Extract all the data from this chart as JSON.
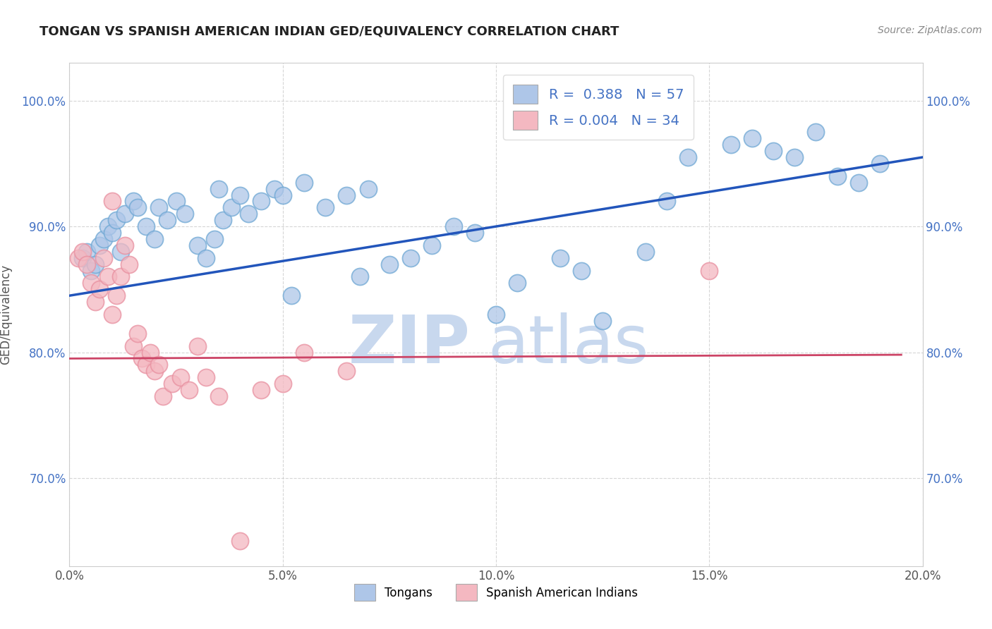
{
  "title": "TONGAN VS SPANISH AMERICAN INDIAN GED/EQUIVALENCY CORRELATION CHART",
  "source_text": "Source: ZipAtlas.com",
  "ylabel": "GED/Equivalency",
  "xlim": [
    0.0,
    20.0
  ],
  "ylim": [
    63.0,
    103.0
  ],
  "xtick_labels": [
    "0.0%",
    "5.0%",
    "10.0%",
    "15.0%",
    "20.0%"
  ],
  "xtick_values": [
    0.0,
    5.0,
    10.0,
    15.0,
    20.0
  ],
  "ytick_labels": [
    "70.0%",
    "80.0%",
    "90.0%",
    "100.0%"
  ],
  "ytick_values": [
    70.0,
    80.0,
    90.0,
    100.0
  ],
  "legend_entries": [
    {
      "label": "Tongans",
      "color": "#aec6e8",
      "R": "0.388",
      "N": "57"
    },
    {
      "label": "Spanish American Indians",
      "color": "#f4b8c1",
      "R": "0.004",
      "N": "34"
    }
  ],
  "blue_scatter_x": [
    0.3,
    0.4,
    0.5,
    0.6,
    0.7,
    0.8,
    0.9,
    1.0,
    1.1,
    1.2,
    1.3,
    1.5,
    1.6,
    1.8,
    2.0,
    2.1,
    2.3,
    2.5,
    2.7,
    3.0,
    3.2,
    3.4,
    3.6,
    3.8,
    4.0,
    4.2,
    4.5,
    4.8,
    5.0,
    5.5,
    6.0,
    6.5,
    7.0,
    7.5,
    8.5,
    9.0,
    9.5,
    10.5,
    11.5,
    12.0,
    13.5,
    14.0,
    15.5,
    16.0,
    16.5,
    17.0,
    17.5,
    18.0,
    18.5,
    3.5,
    5.2,
    6.8,
    8.0,
    10.0,
    12.5,
    14.5,
    19.0
  ],
  "blue_scatter_y": [
    87.5,
    88.0,
    86.5,
    87.0,
    88.5,
    89.0,
    90.0,
    89.5,
    90.5,
    88.0,
    91.0,
    92.0,
    91.5,
    90.0,
    89.0,
    91.5,
    90.5,
    92.0,
    91.0,
    88.5,
    87.5,
    89.0,
    90.5,
    91.5,
    92.5,
    91.0,
    92.0,
    93.0,
    92.5,
    93.5,
    91.5,
    92.5,
    93.0,
    87.0,
    88.5,
    90.0,
    89.5,
    85.5,
    87.5,
    86.5,
    88.0,
    92.0,
    96.5,
    97.0,
    96.0,
    95.5,
    97.5,
    94.0,
    93.5,
    93.0,
    84.5,
    86.0,
    87.5,
    83.0,
    82.5,
    95.5,
    95.0
  ],
  "pink_scatter_x": [
    0.2,
    0.3,
    0.4,
    0.5,
    0.6,
    0.7,
    0.8,
    0.9,
    1.0,
    1.1,
    1.2,
    1.3,
    1.4,
    1.5,
    1.6,
    1.7,
    1.8,
    1.9,
    2.0,
    2.1,
    2.2,
    2.4,
    2.6,
    2.8,
    3.0,
    3.2,
    3.5,
    4.0,
    4.5,
    5.0,
    5.5,
    6.5,
    1.0,
    15.0
  ],
  "pink_scatter_y": [
    87.5,
    88.0,
    87.0,
    85.5,
    84.0,
    85.0,
    87.5,
    86.0,
    83.0,
    84.5,
    86.0,
    88.5,
    87.0,
    80.5,
    81.5,
    79.5,
    79.0,
    80.0,
    78.5,
    79.0,
    76.5,
    77.5,
    78.0,
    77.0,
    80.5,
    78.0,
    76.5,
    65.0,
    77.0,
    77.5,
    80.0,
    78.5,
    92.0,
    86.5
  ],
  "blue_line_x": [
    0.0,
    20.0
  ],
  "blue_line_y": [
    84.5,
    95.5
  ],
  "pink_line_x": [
    0.0,
    19.5
  ],
  "pink_line_y": [
    79.5,
    79.8
  ],
  "watermark_zip": "ZIP",
  "watermark_atlas": "atlas",
  "watermark_color": "#c8d8ee",
  "blue_line_color": "#2255bb",
  "pink_line_color": "#cc4466",
  "blue_scatter_color": "#aec6e8",
  "pink_scatter_color": "#f4b8c1",
  "blue_scatter_edge_color": "#6fa8d4",
  "pink_scatter_edge_color": "#e890a0",
  "background_color": "#ffffff",
  "grid_color": "#cccccc",
  "title_color": "#222222",
  "axis_tick_color": "#4472c4",
  "source_color": "#888888"
}
